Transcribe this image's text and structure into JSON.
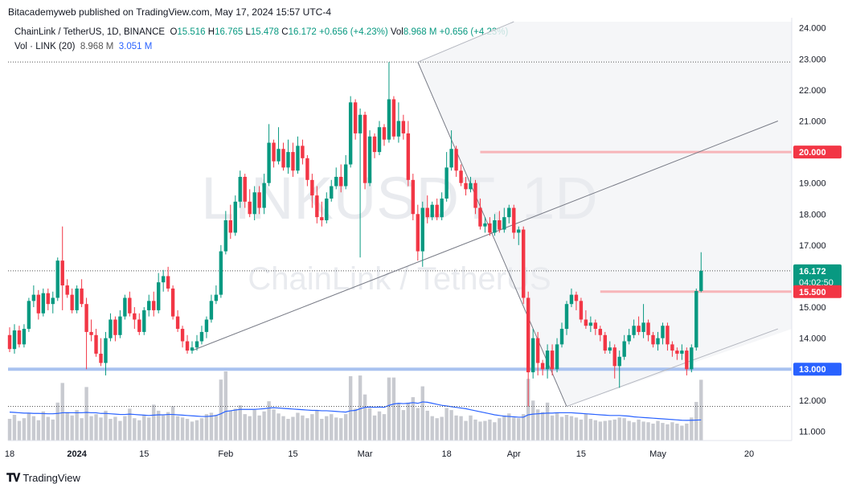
{
  "header": {
    "publisher": "Bitacademyweb published on TradingView.com, May 17, 2024 15:57 UTC-4"
  },
  "legend": {
    "symbol": "ChainLink / TetherUS, 1D, BINANCE",
    "open_label": "O",
    "open": "15.516",
    "high_label": "H",
    "high": "16.765",
    "low_label": "L",
    "low": "15.478",
    "close_label": "C",
    "close": "16.172",
    "change": "+0.656 (+4.23%)",
    "vol_label": "Vol",
    "vol": "8.968 M",
    "vol_change": "+0.656 (+4.23%)",
    "vol_indicator": "Vol · LINK (20)",
    "vol_value": "8.968 M",
    "vol_ma": "3.051 M"
  },
  "watermark": {
    "line1": "LINKUSDT, 1D",
    "line2": "ChainLink / TetherUS"
  },
  "footer": {
    "brand": "TradingView"
  },
  "colors": {
    "up": "#089981",
    "down": "#f23645",
    "volume": "#c8cad0",
    "ma": "#2962ff",
    "support": "#a9c2f0",
    "resistance": "#f7b5b9"
  },
  "chart_data": {
    "type": "candlestick",
    "y_axis": {
      "range": [
        10.7,
        24.2
      ],
      "ticks": [
        "24.000",
        "23.000",
        "22.000",
        "21.000",
        "20.000",
        "19.000",
        "18.000",
        "17.000",
        "16.000",
        "15.000",
        "14.000",
        "13.000",
        "12.000",
        "11.000"
      ],
      "price_tags": [
        {
          "label": "20.000",
          "value": 20.0,
          "color": "#f23645"
        },
        {
          "label": "16.172",
          "value": 16.172,
          "color": "#089981",
          "sub": "04:02:50"
        },
        {
          "label": "15.500",
          "value": 15.5,
          "color": "#f23645"
        },
        {
          "label": "13.000",
          "value": 13.0,
          "color": "#2962ff"
        }
      ]
    },
    "x_axis": {
      "range_days": [
        0,
        154
      ],
      "ticks": [
        {
          "label": "18",
          "day": 0
        },
        {
          "label": "2024",
          "day": 14,
          "bold": true
        },
        {
          "label": "15",
          "day": 28
        },
        {
          "label": "Feb",
          "day": 45
        },
        {
          "label": "15",
          "day": 59
        },
        {
          "label": "Mar",
          "day": 74
        },
        {
          "label": "18",
          "day": 91
        },
        {
          "label": "Apr",
          "day": 105
        },
        {
          "label": "15",
          "day": 119
        },
        {
          "label": "May",
          "day": 135
        },
        {
          "label": "20",
          "day": 154
        }
      ]
    },
    "levels": [
      {
        "name": "support",
        "value": 13.0,
        "color": "#a9c2f0"
      },
      {
        "name": "resistance-upper",
        "value": 20.0,
        "color": "#f7b5b9",
        "from_day": 98
      },
      {
        "name": "resistance-lower",
        "value": 15.5,
        "color": "#f7b5b9",
        "from_day": 123
      }
    ],
    "trendlines": [
      {
        "from": [
          38,
          13.6
        ],
        "to": [
          160,
          21.0
        ]
      },
      {
        "from": [
          85,
          22.9
        ],
        "to": [
          116,
          11.8
        ]
      },
      {
        "from": [
          116,
          11.8
        ],
        "to": [
          160,
          14.3
        ]
      },
      {
        "from": [
          85,
          22.9
        ],
        "to": [
          105,
          24.2
        ]
      }
    ],
    "last_close": 16.172,
    "high_marker": 22.9,
    "low_marker": 11.8,
    "candles": [
      [
        14.1,
        13.65,
        14.35,
        13.55
      ],
      [
        13.65,
        14.25,
        14.45,
        13.5
      ],
      [
        14.25,
        13.8,
        14.4,
        13.7
      ],
      [
        13.8,
        14.3,
        14.45,
        13.7
      ],
      [
        14.3,
        15.2,
        15.3,
        14.2
      ],
      [
        15.2,
        15.4,
        15.7,
        15.0
      ],
      [
        15.4,
        14.8,
        15.55,
        14.6
      ],
      [
        14.8,
        15.45,
        15.6,
        14.7
      ],
      [
        15.45,
        15.1,
        15.6,
        14.9
      ],
      [
        15.1,
        15.3,
        15.5,
        14.8
      ],
      [
        15.3,
        16.5,
        16.6,
        15.2
      ],
      [
        16.5,
        15.7,
        17.6,
        14.9
      ],
      [
        15.7,
        15.4,
        15.9,
        15.3
      ],
      [
        15.4,
        14.9,
        15.6,
        14.8
      ],
      [
        14.9,
        15.6,
        15.7,
        14.8
      ],
      [
        15.6,
        15.1,
        15.9,
        15.0
      ],
      [
        15.1,
        14.2,
        15.3,
        13.0
      ],
      [
        14.2,
        14.1,
        14.6,
        13.9
      ],
      [
        14.1,
        13.5,
        14.3,
        13.4
      ],
      [
        13.5,
        13.2,
        14.0,
        13.1
      ],
      [
        13.2,
        14.0,
        14.2,
        12.8
      ],
      [
        14.0,
        14.6,
        14.8,
        13.9
      ],
      [
        14.6,
        14.1,
        14.7,
        13.9
      ],
      [
        14.1,
        14.7,
        14.9,
        14.0
      ],
      [
        14.7,
        15.3,
        15.4,
        14.6
      ],
      [
        15.3,
        14.8,
        15.5,
        14.7
      ],
      [
        14.8,
        14.6,
        15.0,
        14.3
      ],
      [
        14.6,
        14.2,
        14.8,
        14.1
      ],
      [
        14.2,
        14.9,
        15.0,
        14.1
      ],
      [
        14.9,
        15.2,
        15.4,
        14.7
      ],
      [
        15.2,
        14.9,
        15.5,
        14.7
      ],
      [
        14.9,
        15.8,
        16.1,
        14.8
      ],
      [
        15.8,
        16.0,
        16.2,
        15.5
      ],
      [
        16.0,
        15.6,
        16.3,
        15.5
      ],
      [
        15.6,
        14.7,
        15.7,
        14.6
      ],
      [
        14.7,
        14.3,
        14.9,
        14.2
      ],
      [
        14.3,
        13.9,
        14.4,
        13.7
      ],
      [
        13.9,
        13.6,
        14.1,
        13.5
      ],
      [
        13.6,
        13.7,
        13.9,
        13.5
      ],
      [
        13.7,
        13.9,
        14.1,
        13.6
      ],
      [
        13.9,
        14.2,
        14.4,
        13.8
      ],
      [
        14.2,
        14.6,
        14.7,
        14.0
      ],
      [
        14.6,
        15.2,
        15.4,
        14.5
      ],
      [
        15.2,
        15.4,
        15.7,
        15.1
      ],
      [
        15.4,
        16.8,
        17.0,
        15.3
      ],
      [
        16.8,
        17.8,
        18.1,
        16.7
      ],
      [
        17.8,
        17.4,
        18.3,
        17.2
      ],
      [
        17.4,
        18.4,
        18.6,
        17.3
      ],
      [
        18.4,
        19.2,
        19.4,
        18.2
      ],
      [
        19.2,
        18.4,
        19.3,
        18.2
      ],
      [
        18.4,
        18.0,
        18.8,
        17.9
      ],
      [
        18.0,
        18.7,
        18.9,
        17.8
      ],
      [
        18.7,
        18.2,
        18.9,
        18.0
      ],
      [
        18.2,
        19.0,
        19.3,
        18.0
      ],
      [
        19.0,
        20.3,
        20.9,
        18.9
      ],
      [
        20.3,
        19.7,
        20.4,
        19.5
      ],
      [
        19.7,
        20.1,
        20.8,
        19.6
      ],
      [
        20.1,
        19.5,
        20.3,
        19.4
      ],
      [
        19.5,
        20.0,
        20.4,
        19.3
      ],
      [
        20.0,
        19.4,
        20.3,
        19.2
      ],
      [
        19.4,
        20.2,
        20.5,
        19.3
      ],
      [
        20.2,
        19.8,
        20.4,
        19.6
      ],
      [
        19.8,
        19.1,
        19.9,
        18.9
      ],
      [
        19.1,
        18.6,
        19.3,
        18.2
      ],
      [
        18.6,
        17.9,
        18.9,
        17.7
      ],
      [
        17.9,
        17.8,
        18.4,
        17.6
      ],
      [
        17.8,
        18.5,
        18.7,
        17.7
      ],
      [
        18.5,
        18.9,
        19.1,
        18.4
      ],
      [
        18.9,
        19.2,
        19.5,
        18.8
      ],
      [
        19.2,
        18.9,
        19.6,
        18.7
      ],
      [
        18.9,
        19.6,
        19.9,
        18.8
      ],
      [
        19.6,
        21.6,
        21.8,
        19.5
      ],
      [
        21.6,
        20.6,
        21.7,
        20.4
      ],
      [
        20.6,
        21.2,
        21.4,
        16.6
      ],
      [
        21.2,
        19.0,
        21.3,
        18.8
      ],
      [
        19.0,
        20.5,
        20.7,
        18.9
      ],
      [
        20.5,
        20.0,
        20.6,
        19.8
      ],
      [
        20.0,
        20.8,
        21.0,
        19.9
      ],
      [
        20.8,
        20.4,
        20.9,
        20.2
      ],
      [
        20.4,
        21.7,
        22.9,
        20.3
      ],
      [
        21.7,
        20.5,
        21.8,
        20.4
      ],
      [
        20.5,
        21.0,
        21.6,
        20.3
      ],
      [
        21.0,
        20.6,
        21.2,
        20.4
      ],
      [
        20.6,
        19.1,
        21.0,
        18.9
      ],
      [
        19.1,
        18.0,
        19.3,
        17.8
      ],
      [
        18.0,
        16.8,
        18.3,
        16.5
      ],
      [
        16.8,
        18.2,
        18.4,
        16.3
      ],
      [
        18.2,
        17.9,
        18.6,
        17.7
      ],
      [
        17.9,
        18.3,
        18.4,
        17.8
      ],
      [
        18.3,
        17.9,
        18.5,
        17.8
      ],
      [
        17.9,
        18.5,
        18.7,
        17.8
      ],
      [
        18.5,
        19.5,
        20.0,
        18.4
      ],
      [
        19.5,
        20.1,
        20.7,
        19.4
      ],
      [
        20.1,
        19.4,
        20.2,
        19.2
      ],
      [
        19.4,
        19.0,
        19.6,
        18.9
      ],
      [
        19.0,
        18.8,
        19.2,
        18.6
      ],
      [
        18.8,
        19.0,
        19.2,
        18.7
      ],
      [
        19.0,
        18.2,
        19.1,
        18.0
      ],
      [
        18.2,
        17.6,
        18.5,
        17.5
      ],
      [
        17.6,
        17.7,
        17.9,
        17.4
      ],
      [
        17.7,
        17.4,
        17.9,
        17.3
      ],
      [
        17.4,
        17.8,
        18.0,
        17.3
      ],
      [
        17.8,
        17.5,
        18.1,
        17.4
      ],
      [
        17.5,
        17.9,
        18.2,
        17.4
      ],
      [
        17.9,
        18.2,
        18.3,
        17.7
      ],
      [
        18.2,
        17.4,
        18.3,
        17.2
      ],
      [
        17.4,
        17.5,
        17.6,
        17.0
      ],
      [
        17.5,
        15.3,
        17.6,
        15.1
      ],
      [
        15.3,
        12.9,
        15.5,
        11.8
      ],
      [
        12.9,
        14.0,
        14.3,
        12.7
      ],
      [
        14.0,
        13.2,
        14.2,
        12.8
      ],
      [
        13.2,
        13.0,
        13.3,
        12.8
      ],
      [
        13.0,
        13.6,
        13.8,
        12.7
      ],
      [
        13.6,
        13.0,
        13.8,
        12.8
      ],
      [
        13.0,
        13.8,
        14.0,
        12.9
      ],
      [
        13.8,
        14.3,
        14.5,
        13.7
      ],
      [
        14.3,
        15.1,
        15.2,
        14.1
      ],
      [
        15.1,
        15.4,
        15.6,
        15.0
      ],
      [
        15.4,
        15.2,
        15.5,
        14.9
      ],
      [
        15.2,
        14.6,
        15.3,
        14.5
      ],
      [
        14.6,
        14.4,
        14.9,
        14.3
      ],
      [
        14.4,
        14.5,
        14.7,
        14.2
      ],
      [
        14.5,
        14.3,
        14.6,
        14.1
      ],
      [
        14.3,
        14.1,
        14.4,
        13.9
      ],
      [
        14.1,
        13.6,
        14.2,
        13.5
      ],
      [
        13.6,
        13.7,
        13.9,
        13.5
      ],
      [
        13.7,
        13.1,
        13.8,
        12.7
      ],
      [
        13.1,
        13.4,
        13.6,
        12.4
      ],
      [
        13.4,
        13.9,
        14.1,
        13.3
      ],
      [
        13.9,
        14.1,
        14.3,
        13.8
      ],
      [
        14.1,
        14.4,
        14.6,
        14.0
      ],
      [
        14.4,
        14.2,
        14.7,
        14.1
      ],
      [
        14.2,
        14.5,
        15.1,
        14.0
      ],
      [
        14.5,
        14.1,
        14.6,
        13.9
      ],
      [
        14.1,
        13.8,
        14.2,
        13.7
      ],
      [
        13.8,
        14.0,
        14.2,
        13.6
      ],
      [
        14.0,
        14.4,
        14.5,
        13.8
      ],
      [
        14.4,
        13.8,
        14.5,
        13.6
      ],
      [
        13.8,
        13.6,
        13.9,
        13.4
      ],
      [
        13.6,
        13.5,
        13.7,
        13.3
      ],
      [
        13.5,
        13.6,
        13.8,
        13.3
      ],
      [
        13.6,
        13.0,
        13.7,
        12.8
      ],
      [
        13.0,
        13.7,
        13.8,
        12.9
      ],
      [
        13.7,
        15.52,
        15.6,
        13.6
      ],
      [
        15.52,
        16.17,
        16.77,
        15.48
      ]
    ],
    "volume": {
      "range_m": [
        0,
        14
      ],
      "values_m": [
        3.2,
        3.8,
        2.9,
        3.3,
        4.1,
        3.6,
        3.0,
        4.3,
        3.5,
        3.1,
        5.6,
        8.5,
        4.2,
        3.7,
        4.5,
        3.3,
        7.9,
        3.6,
        3.9,
        3.4,
        4.4,
        3.2,
        3.5,
        2.9,
        3.6,
        4.7,
        3.3,
        3.0,
        3.8,
        3.4,
        5.3,
        4.4,
        3.7,
        4.2,
        5.1,
        3.6,
        3.4,
        3.2,
        2.8,
        3.0,
        3.3,
        3.9,
        4.1,
        3.8,
        9.0,
        10.2,
        4.4,
        4.7,
        5.2,
        3.9,
        3.6,
        4.5,
        3.7,
        4.3,
        5.8,
        4.6,
        4.0,
        3.6,
        3.2,
        3.5,
        4.1,
        3.7,
        3.3,
        3.9,
        4.4,
        3.2,
        3.6,
        3.9,
        3.4,
        3.3,
        3.9,
        9.5,
        4.7,
        9.6,
        6.8,
        4.8,
        3.7,
        4.3,
        3.9,
        9.3,
        9.3,
        5.5,
        4.5,
        5.6,
        6.4,
        4.8,
        8.0,
        4.4,
        3.6,
        3.3,
        3.5,
        4.8,
        4.5,
        3.7,
        3.6,
        2.9,
        3.7,
        3.1,
        2.8,
        2.9,
        3.1,
        2.7,
        3.3,
        3.7,
        4.0,
        3.4,
        3.3,
        3.9,
        9.1,
        5.9,
        4.6,
        4.2,
        5.6,
        3.7,
        4.1,
        3.5,
        3.8,
        3.6,
        3.4,
        3.1,
        3.9,
        3.2,
        3.0,
        2.8,
        2.9,
        3.0,
        3.1,
        3.4,
        3.3,
        2.9,
        2.7,
        3.1,
        2.8,
        2.7,
        2.5,
        2.9,
        2.6,
        2.4,
        2.7,
        2.5,
        2.2,
        2.5,
        3.4,
        5.7,
        8.97
      ],
      "ma_m": [
        4.2,
        4.15,
        4.1,
        4.05,
        4.05,
        4.0,
        4.0,
        3.98,
        3.95,
        3.95,
        4.0,
        4.1,
        4.1,
        4.1,
        4.1,
        4.1,
        4.15,
        4.1,
        4.1,
        4.0,
        4.0,
        3.95,
        3.9,
        3.85,
        3.85,
        3.9,
        3.85,
        3.8,
        3.75,
        3.7,
        3.75,
        3.8,
        3.8,
        3.85,
        3.85,
        3.8,
        3.75,
        3.7,
        3.65,
        3.6,
        3.55,
        3.55,
        3.6,
        3.7,
        3.95,
        4.3,
        4.4,
        4.5,
        4.6,
        4.6,
        4.6,
        4.6,
        4.65,
        4.7,
        4.8,
        4.85,
        4.8,
        4.75,
        4.7,
        4.65,
        4.6,
        4.55,
        4.5,
        4.45,
        4.45,
        4.4,
        4.4,
        4.35,
        4.3,
        4.25,
        4.2,
        4.4,
        4.45,
        4.7,
        4.9,
        4.95,
        4.9,
        4.95,
        4.9,
        5.2,
        5.4,
        5.5,
        5.45,
        5.5,
        5.6,
        5.5,
        5.7,
        5.65,
        5.5,
        5.35,
        5.2,
        5.1,
        5.0,
        4.9,
        4.8,
        4.7,
        4.55,
        4.4,
        4.25,
        4.1,
        3.95,
        3.8,
        3.7,
        3.6,
        3.55,
        3.5,
        3.45,
        3.45,
        3.8,
        3.9,
        3.95,
        4.0,
        4.05,
        4.05,
        4.1,
        4.1,
        4.1,
        4.1,
        4.05,
        4.0,
        3.95,
        3.9,
        3.85,
        3.8,
        3.75,
        3.7,
        3.7,
        3.7,
        3.65,
        3.6,
        3.5,
        3.45,
        3.4,
        3.35,
        3.3,
        3.25,
        3.2,
        3.15,
        3.1,
        3.05,
        3.0,
        2.98,
        3.0,
        3.02,
        3.05
      ]
    }
  }
}
